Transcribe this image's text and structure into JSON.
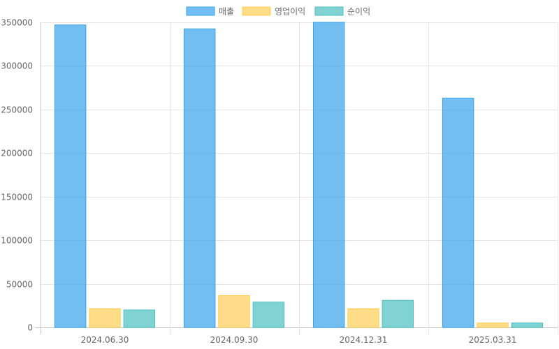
{
  "chart_data": {
    "type": "bar",
    "categories": [
      "2024.06.30",
      "2024.09.30",
      "2024.12.31",
      "2025.03.31"
    ],
    "series": [
      {
        "name": "매출",
        "values": [
          347000,
          342500,
          350000,
          263000
        ],
        "color": "#36A2EB",
        "fill": "rgba(54,162,235,0.7)"
      },
      {
        "name": "영업이익",
        "values": [
          21500,
          36500,
          21500,
          5000
        ],
        "color": "#FFCE56",
        "fill": "rgba(255,206,86,0.7)"
      },
      {
        "name": "순이익",
        "values": [
          20000,
          29000,
          31000,
          5000
        ],
        "color": "#4BC0C0",
        "fill": "rgba(75,192,192,0.7)"
      }
    ],
    "y_ticks": [
      "0",
      "50000",
      "100000",
      "150000",
      "200000",
      "250000",
      "300000",
      "350000"
    ],
    "ylim": [
      0,
      350000
    ],
    "title": "",
    "xlabel": "",
    "ylabel": "",
    "grid": true,
    "legend_position": "top-center"
  }
}
